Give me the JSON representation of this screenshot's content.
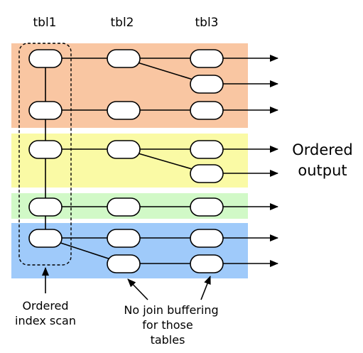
{
  "headers": {
    "tbl1": "tbl1",
    "tbl2": "tbl2",
    "tbl3": "tbl3"
  },
  "output_label": {
    "line1": "Ordered",
    "line2": "output"
  },
  "scan_label": {
    "line1": "Ordered",
    "line2": "index scan"
  },
  "buffer_label": {
    "line1": "No join buffering",
    "line2": "for those",
    "line3": "tables"
  },
  "colors": {
    "band_orange": "#f9c6a2",
    "band_yellow": "#fafaa5",
    "band_green": "#d1f9c7",
    "band_blue": "#9fcafa",
    "stroke": "#000000",
    "node_fill": "#ffffff"
  }
}
